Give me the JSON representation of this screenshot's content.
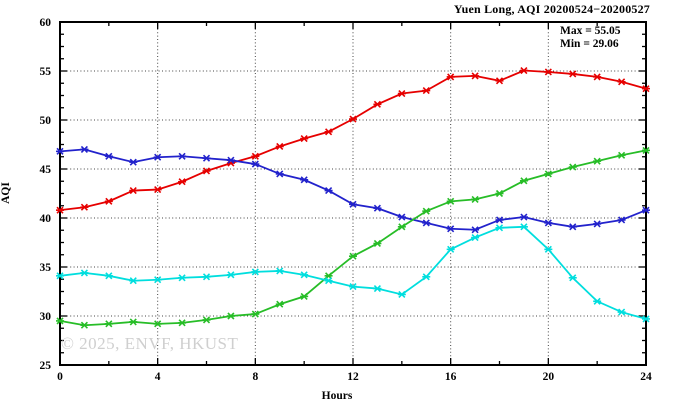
{
  "title": "Yuen Long, AQI 20200524−20200527",
  "annotation": {
    "max_label": "Max = 55.05",
    "min_label": "Min = 29.06"
  },
  "watermark": "© 2025, ENVF, HKUST",
  "chart_data": {
    "type": "line",
    "title": "Yuen Long, AQI 20200524−20200527",
    "xlabel": "Hours",
    "ylabel": "AQI",
    "xlim": [
      0,
      24
    ],
    "ylim": [
      25,
      60
    ],
    "x_major_ticks": [
      0,
      4,
      8,
      12,
      16,
      20,
      24
    ],
    "x_minor_ticks": [
      2,
      6,
      10,
      14,
      18,
      22
    ],
    "y_major_ticks": [
      25,
      30,
      35,
      40,
      45,
      50,
      55,
      60
    ],
    "y_minor_step": 1.25,
    "grid": "dotted-at-major-ticks",
    "legend_position": "none",
    "marker": "asterisk",
    "max_value": 55.05,
    "min_value": 29.06,
    "x": [
      0,
      1,
      2,
      3,
      4,
      5,
      6,
      7,
      8,
      9,
      10,
      11,
      12,
      13,
      14,
      15,
      16,
      17,
      18,
      19,
      20,
      21,
      22,
      23,
      24
    ],
    "series": [
      {
        "name": "series-red",
        "color": "#e60000",
        "values": [
          40.8,
          41.1,
          41.7,
          42.8,
          42.9,
          43.7,
          44.8,
          45.6,
          46.3,
          47.3,
          48.1,
          48.8,
          50.1,
          51.6,
          52.7,
          53.0,
          54.4,
          54.5,
          54.0,
          55.05,
          54.9,
          54.7,
          54.4,
          53.9,
          53.2
        ]
      },
      {
        "name": "series-blue",
        "color": "#2222cc",
        "values": [
          46.8,
          47.0,
          46.3,
          45.7,
          46.2,
          46.3,
          46.1,
          45.9,
          45.5,
          44.5,
          43.9,
          42.8,
          41.4,
          41.0,
          40.1,
          39.5,
          38.9,
          38.8,
          39.8,
          40.1,
          39.5,
          39.1,
          39.4,
          39.8,
          40.8
        ]
      },
      {
        "name": "series-green",
        "color": "#27bd27",
        "values": [
          29.5,
          29.06,
          29.2,
          29.4,
          29.2,
          29.3,
          29.6,
          30.0,
          30.2,
          31.2,
          32.0,
          34.1,
          36.1,
          37.4,
          39.1,
          40.7,
          41.7,
          41.9,
          42.5,
          43.8,
          44.5,
          45.2,
          45.8,
          46.4,
          46.9
        ]
      },
      {
        "name": "series-cyan",
        "color": "#00dede",
        "values": [
          34.1,
          34.4,
          34.1,
          33.6,
          33.7,
          33.9,
          34.0,
          34.2,
          34.5,
          34.6,
          34.2,
          33.6,
          33.0,
          32.8,
          32.2,
          34.0,
          36.8,
          38.0,
          39.0,
          39.1,
          36.8,
          33.9,
          31.5,
          30.4,
          29.7
        ]
      }
    ]
  }
}
